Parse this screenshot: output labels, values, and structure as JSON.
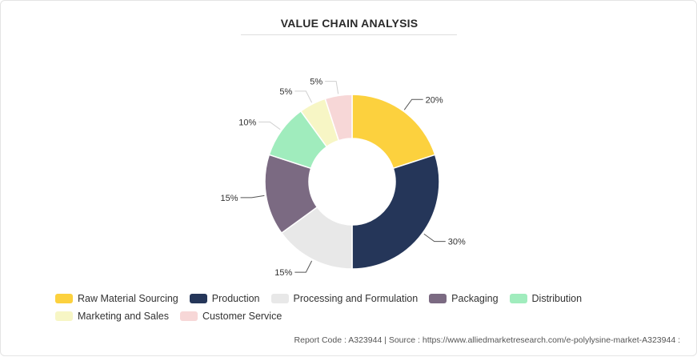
{
  "title": "VALUE CHAIN ANALYSIS",
  "chart_data": {
    "type": "pie",
    "title": "VALUE CHAIN ANALYSIS",
    "donut": true,
    "legend_position": "bottom",
    "slices": [
      {
        "label": "Raw Material Sourcing",
        "value": 20,
        "display": "20%",
        "color": "#fcd13e"
      },
      {
        "label": "Production",
        "value": 30,
        "display": "30%",
        "color": "#253659"
      },
      {
        "label": "Processing and Formulation",
        "value": 15,
        "display": "15%",
        "color": "#e8e8e8"
      },
      {
        "label": "Packaging",
        "value": 15,
        "display": "15%",
        "color": "#7b6a82"
      },
      {
        "label": "Distribution",
        "value": 10,
        "display": "10%",
        "color": "#a0ecbd"
      },
      {
        "label": "Marketing and Sales",
        "value": 5,
        "display": "5%",
        "color": "#f7f6c5"
      },
      {
        "label": "Customer Service",
        "value": 5,
        "display": "5%",
        "color": "#f7d7d7"
      }
    ]
  },
  "footer": "Report Code : A323944  |  Source : https://www.alliedmarketresearch.com/e-polylysine-market-A323944 :"
}
